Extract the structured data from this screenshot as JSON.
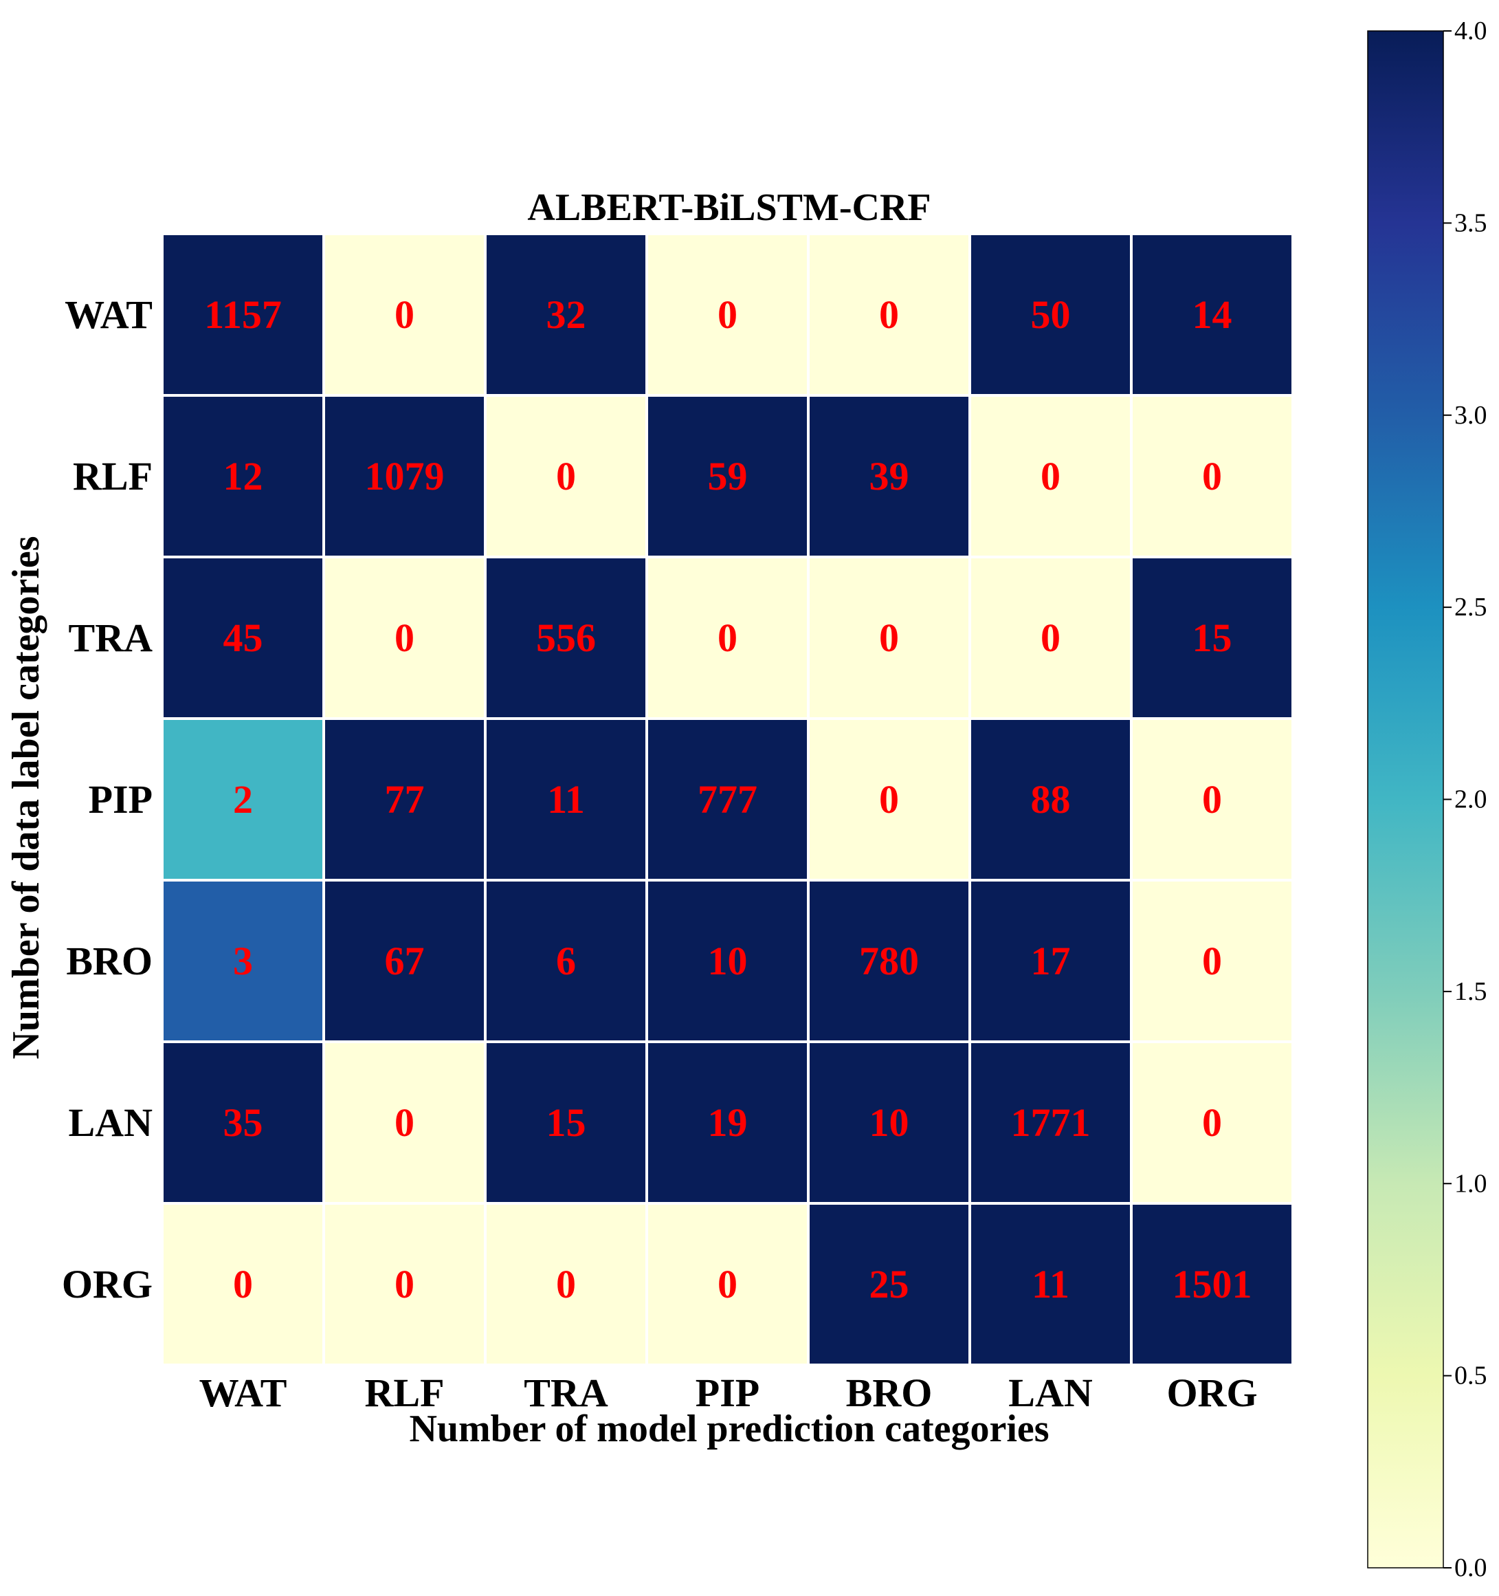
{
  "chart_data": {
    "type": "heatmap",
    "title": "ALBERT-BiLSTM-CRF",
    "xlabel": "Number of model prediction categories",
    "ylabel": "Number of data label categories",
    "x_categories": [
      "WAT",
      "RLF",
      "TRA",
      "PIP",
      "BRO",
      "LAN",
      "ORG"
    ],
    "y_categories": [
      "WAT",
      "RLF",
      "TRA",
      "PIP",
      "BRO",
      "LAN",
      "ORG"
    ],
    "values": [
      [
        1157,
        0,
        32,
        0,
        0,
        50,
        14
      ],
      [
        12,
        1079,
        0,
        59,
        39,
        0,
        0
      ],
      [
        45,
        0,
        556,
        0,
        0,
        0,
        15
      ],
      [
        2,
        77,
        11,
        777,
        0,
        88,
        0
      ],
      [
        3,
        67,
        6,
        10,
        780,
        17,
        0
      ],
      [
        35,
        0,
        15,
        19,
        10,
        1771,
        0
      ],
      [
        0,
        0,
        0,
        0,
        25,
        11,
        1501
      ]
    ],
    "colorbar": {
      "colormap": "YlGnBu",
      "vmin": 0.0,
      "vmax": 4.0,
      "ticks": [
        "0.0",
        "0.5",
        "1.0",
        "1.5",
        "2.0",
        "2.5",
        "3.0",
        "3.5",
        "4.0"
      ]
    },
    "annotation_color": "#ff0000",
    "colormap_stops": [
      [
        "#ffffd9",
        0.0
      ],
      [
        "#edf8b1",
        0.125
      ],
      [
        "#c7e9b4",
        0.25
      ],
      [
        "#7fcdbb",
        0.375
      ],
      [
        "#41b6c4",
        0.5
      ],
      [
        "#1d91c0",
        0.625
      ],
      [
        "#225ea8",
        0.75
      ],
      [
        "#253494",
        0.875
      ],
      [
        "#081d58",
        1.0
      ]
    ]
  }
}
